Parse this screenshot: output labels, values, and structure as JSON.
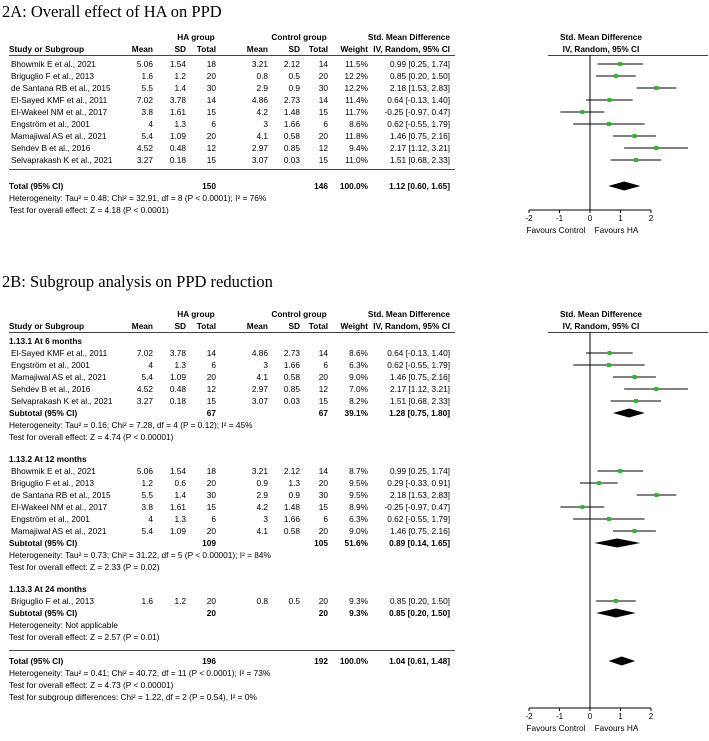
{
  "panelA": {
    "title": "2A: Overall effect of HA on PPD",
    "headers": {
      "study": "Study or Subgroup",
      "group1": "HA group",
      "group2": "Control group",
      "mean": "Mean",
      "sd": "SD",
      "total": "Total",
      "weight": "Weight",
      "smd": "Std. Mean Difference",
      "method": "IV, Random, 95% CI"
    },
    "rows": [
      {
        "study": "Bhowmik E et al., 2021",
        "m1": "5.06",
        "sd1": "1.54",
        "n1": "18",
        "m2": "3.21",
        "sd2": "2.12",
        "n2": "14",
        "w": "11.5%",
        "ci": "0.99 [0.25, 1.74]"
      },
      {
        "study": "Briguglio F et al., 2013",
        "m1": "1.6",
        "sd1": "1.2",
        "n1": "20",
        "m2": "0.8",
        "sd2": "0.5",
        "n2": "20",
        "w": "12.2%",
        "ci": "0.85 [0.20, 1.50]"
      },
      {
        "study": "de Santana RB et al., 2015",
        "m1": "5.5",
        "sd1": "1.4",
        "n1": "30",
        "m2": "2.9",
        "sd2": "0.9",
        "n2": "30",
        "w": "12.2%",
        "ci": "2.18 [1.53, 2.83]"
      },
      {
        "study": "El-Sayed KMF et al., 2011",
        "m1": "7.02",
        "sd1": "3.78",
        "n1": "14",
        "m2": "4.86",
        "sd2": "2.73",
        "n2": "14",
        "w": "11.4%",
        "ci": "0.64 [-0.13, 1.40]"
      },
      {
        "study": "El-Wakeel NM et al., 2017",
        "m1": "3.8",
        "sd1": "1.61",
        "n1": "15",
        "m2": "4.2",
        "sd2": "1.48",
        "n2": "15",
        "w": "11.7%",
        "ci": "-0.25 [-0.97, 0.47]"
      },
      {
        "study": "Engström et al., 2001",
        "m1": "4",
        "sd1": "1.3",
        "n1": "6",
        "m2": "3",
        "sd2": "1.66",
        "n2": "6",
        "w": "8.6%",
        "ci": "0.62 [-0.55, 1.79]"
      },
      {
        "study": "Mamajiwal AS et al., 2021",
        "m1": "5.4",
        "sd1": "1.09",
        "n1": "20",
        "m2": "4.1",
        "sd2": "0.58",
        "n2": "20",
        "w": "11.8%",
        "ci": "1.46 [0.75, 2.16]"
      },
      {
        "study": "Sehdev B et al., 2016",
        "m1": "4.52",
        "sd1": "0.48",
        "n1": "12",
        "m2": "2.97",
        "sd2": "0.85",
        "n2": "12",
        "w": "9.4%",
        "ci": "2.17 [1.12, 3.21]"
      },
      {
        "study": "Selvaprakash K et al., 2021",
        "m1": "3.27",
        "sd1": "0.18",
        "n1": "15",
        "m2": "3.07",
        "sd2": "0.03",
        "n2": "15",
        "w": "11.0%",
        "ci": "1.51 [0.68, 2.33]"
      }
    ],
    "total": {
      "label": "Total (95% CI)",
      "n1": "150",
      "n2": "146",
      "w": "100.0%",
      "ci": "1.12 [0.60, 1.65]"
    },
    "heterogeneity": "Heterogeneity: Tau² = 0.48; Chi² = 32.91, df = 8 (P < 0.0001); I² = 76%",
    "overall": "Test for overall effect: Z = 4.18 (P < 0.0001)",
    "favours_left": "Favours Control",
    "favours_right": "Favours HA"
  },
  "panelB": {
    "title": "2B: Subgroup analysis on PPD reduction",
    "headers": {
      "study": "Study or Subgroup",
      "group1": "HA group",
      "group2": "Control group",
      "mean": "Mean",
      "sd": "SD",
      "total": "Total",
      "weight": "Weight",
      "smd": "Std. Mean Difference",
      "method": "IV, Random, 95% CI"
    },
    "subgroups": [
      {
        "name": "1.13.1 At 6 months",
        "rows": [
          {
            "study": "El-Sayed KMF et al., 2011",
            "m1": "7.02",
            "sd1": "3.78",
            "n1": "14",
            "m2": "4.86",
            "sd2": "2.73",
            "n2": "14",
            "w": "8.6%",
            "ci": "0.64 [-0.13, 1.40]"
          },
          {
            "study": "Engström et al., 2001",
            "m1": "4",
            "sd1": "1.3",
            "n1": "6",
            "m2": "3",
            "sd2": "1.66",
            "n2": "6",
            "w": "6.3%",
            "ci": "0.62 [-0.55, 1.79]"
          },
          {
            "study": "Mamajiwal AS et al., 2021",
            "m1": "5.4",
            "sd1": "1.09",
            "n1": "20",
            "m2": "4.1",
            "sd2": "0.58",
            "n2": "20",
            "w": "9.0%",
            "ci": "1.46 [0.75, 2.16]"
          },
          {
            "study": "Sehdev B et al., 2016",
            "m1": "4.52",
            "sd1": "0.48",
            "n1": "12",
            "m2": "2.97",
            "sd2": "0.85",
            "n2": "12",
            "w": "7.0%",
            "ci": "2.17 [1.12, 3.21]"
          },
          {
            "study": "Selvaprakash K et al., 2021",
            "m1": "3.27",
            "sd1": "0.18",
            "n1": "15",
            "m2": "3.07",
            "sd2": "0.03",
            "n2": "15",
            "w": "8.2%",
            "ci": "1.51 [0.68, 2.33]"
          }
        ],
        "subtotal": {
          "label": "Subtotal (95% CI)",
          "n1": "67",
          "n2": "67",
          "w": "39.1%",
          "ci": "1.28 [0.75, 1.80]"
        },
        "heterogeneity": "Heterogeneity: Tau² = 0.16; Chi² = 7.28, df = 4 (P = 0.12); I² = 45%",
        "overall": "Test for overall effect: Z = 4.74 (P < 0.00001)"
      },
      {
        "name": "1.13.2 At 12 months",
        "rows": [
          {
            "study": "Bhowmik E et al., 2021",
            "m1": "5.06",
            "sd1": "1.54",
            "n1": "18",
            "m2": "3.21",
            "sd2": "2.12",
            "n2": "14",
            "w": "8.7%",
            "ci": "0.99 [0.25, 1.74]"
          },
          {
            "study": "Briguglio F et al., 2013",
            "m1": "1.2",
            "sd1": "0.6",
            "n1": "20",
            "m2": "0.9",
            "sd2": "1.3",
            "n2": "20",
            "w": "9.5%",
            "ci": "0.29 [-0.33, 0.91]"
          },
          {
            "study": "de Santana RB et al., 2015",
            "m1": "5.5",
            "sd1": "1.4",
            "n1": "30",
            "m2": "2.9",
            "sd2": "0.9",
            "n2": "30",
            "w": "9.5%",
            "ci": "2.18 [1.53, 2.83]"
          },
          {
            "study": "El-Wakeel NM et al., 2017",
            "m1": "3.8",
            "sd1": "1.61",
            "n1": "15",
            "m2": "4.2",
            "sd2": "1.48",
            "n2": "15",
            "w": "8.9%",
            "ci": "-0.25 [-0.97, 0.47]"
          },
          {
            "study": "Engström et al., 2001",
            "m1": "4",
            "sd1": "1.3",
            "n1": "6",
            "m2": "3",
            "sd2": "1.66",
            "n2": "6",
            "w": "6.3%",
            "ci": "0.62 [-0.55, 1.79]"
          },
          {
            "study": "Mamajiwal AS et al., 2021",
            "m1": "5.4",
            "sd1": "1.09",
            "n1": "20",
            "m2": "4.1",
            "sd2": "0.58",
            "n2": "20",
            "w": "9.0%",
            "ci": "1.46 [0.75, 2.16]"
          }
        ],
        "subtotal": {
          "label": "Subtotal (95% CI)",
          "n1": "109",
          "n2": "105",
          "w": "51.6%",
          "ci": "0.89 [0.14, 1.65]"
        },
        "heterogeneity": "Heterogeneity: Tau² = 0.73; Chi² = 31.22, df = 5 (P < 0.00001); I² = 84%",
        "overall": "Test for overall effect: Z = 2.33 (P = 0.02)"
      },
      {
        "name": "1.13.3 At 24 months",
        "rows": [
          {
            "study": "Briguglio F et al., 2013",
            "m1": "1.6",
            "sd1": "1.2",
            "n1": "20",
            "m2": "0.8",
            "sd2": "0.5",
            "n2": "20",
            "w": "9.3%",
            "ci": "0.85 [0.20, 1.50]"
          }
        ],
        "subtotal": {
          "label": "Subtotal (95% CI)",
          "n1": "20",
          "n2": "20",
          "w": "9.3%",
          "ci": "0.85 [0.20, 1.50]"
        },
        "heterogeneity": "Heterogeneity: Not applicable",
        "overall": "Test for overall effect: Z = 2.57 (P = 0.01)"
      }
    ],
    "total": {
      "label": "Total (95% CI)",
      "n1": "196",
      "n2": "192",
      "w": "100.0%",
      "ci": "1.04 [0.61, 1.48]"
    },
    "heterogeneity": "Heterogeneity: Tau² = 0.41; Chi² = 40.72, df = 11 (P < 0.0001); I² = 73%",
    "overall": "Test for overall effect: Z = 4.73 (P < 0.00001)",
    "subgroup_diff": "Test for subgroup differences: Chi² = 1.22, df = 2 (P = 0.54), I² = 0%",
    "favours_left": "Favours Control",
    "favours_right": "Favours HA"
  },
  "chart_data": [
    {
      "type": "scatter",
      "subtype": "forest",
      "title": "2A: Overall effect of HA on PPD",
      "xlim": [
        -2,
        2
      ],
      "xticks": [
        "-2",
        "-1",
        "0",
        "1",
        "2"
      ],
      "marker_color": "#2db82d",
      "studies": [
        {
          "label": "Bhowmik E et al., 2021",
          "est": 0.99,
          "lo": 0.25,
          "hi": 1.74
        },
        {
          "label": "Briguglio F et al., 2013",
          "est": 0.85,
          "lo": 0.2,
          "hi": 1.5
        },
        {
          "label": "de Santana RB et al., 2015",
          "est": 2.18,
          "lo": 1.53,
          "hi": 2.83
        },
        {
          "label": "El-Sayed KMF et al., 2011",
          "est": 0.64,
          "lo": -0.13,
          "hi": 1.4
        },
        {
          "label": "El-Wakeel NM et al., 2017",
          "est": -0.25,
          "lo": -0.97,
          "hi": 0.47
        },
        {
          "label": "Engström et al., 2001",
          "est": 0.62,
          "lo": -0.55,
          "hi": 1.79
        },
        {
          "label": "Mamajiwal AS et al., 2021",
          "est": 1.46,
          "lo": 0.75,
          "hi": 2.16
        },
        {
          "label": "Sehdev B et al., 2016",
          "est": 2.17,
          "lo": 1.12,
          "hi": 3.21
        },
        {
          "label": "Selvaprakash K et al., 2021",
          "est": 1.51,
          "lo": 0.68,
          "hi": 2.33
        }
      ],
      "pooled": [
        {
          "label": "Total (95% CI)",
          "est": 1.12,
          "lo": 0.6,
          "hi": 1.65
        }
      ]
    },
    {
      "type": "scatter",
      "subtype": "forest",
      "title": "2B: Subgroup analysis on PPD reduction",
      "xlim": [
        -2,
        2
      ],
      "xticks": [
        "-2",
        "-1",
        "0",
        "1",
        "2"
      ],
      "marker_color": "#2db82d",
      "studies": [
        {
          "label": "El-Sayed KMF et al., 2011",
          "est": 0.64,
          "lo": -0.13,
          "hi": 1.4
        },
        {
          "label": "Engström et al., 2001",
          "est": 0.62,
          "lo": -0.55,
          "hi": 1.79
        },
        {
          "label": "Mamajiwal AS et al., 2021",
          "est": 1.46,
          "lo": 0.75,
          "hi": 2.16
        },
        {
          "label": "Sehdev B et al., 2016",
          "est": 2.17,
          "lo": 1.12,
          "hi": 3.21
        },
        {
          "label": "Selvaprakash K et al., 2021",
          "est": 1.51,
          "lo": 0.68,
          "hi": 2.33
        },
        {
          "label": "Bhowmik E et al., 2021",
          "est": 0.99,
          "lo": 0.25,
          "hi": 1.74
        },
        {
          "label": "Briguglio F et al., 2013",
          "est": 0.29,
          "lo": -0.33,
          "hi": 0.91
        },
        {
          "label": "de Santana RB et al., 2015",
          "est": 2.18,
          "lo": 1.53,
          "hi": 2.83
        },
        {
          "label": "El-Wakeel NM et al., 2017",
          "est": -0.25,
          "lo": -0.97,
          "hi": 0.47
        },
        {
          "label": "Engström et al., 2001",
          "est": 0.62,
          "lo": -0.55,
          "hi": 1.79
        },
        {
          "label": "Mamajiwal AS et al., 2021",
          "est": 1.46,
          "lo": 0.75,
          "hi": 2.16
        },
        {
          "label": "Briguglio F et al., 2013",
          "est": 0.85,
          "lo": 0.2,
          "hi": 1.5
        }
      ],
      "pooled": [
        {
          "label": "Subtotal (95% CI)",
          "est": 1.28,
          "lo": 0.75,
          "hi": 1.8
        },
        {
          "label": "Subtotal (95% CI)",
          "est": 0.89,
          "lo": 0.14,
          "hi": 1.65
        },
        {
          "label": "Subtotal (95% CI)",
          "est": 0.85,
          "lo": 0.2,
          "hi": 1.5
        },
        {
          "label": "Total (95% CI)",
          "est": 1.04,
          "lo": 0.61,
          "hi": 1.48
        }
      ]
    }
  ]
}
